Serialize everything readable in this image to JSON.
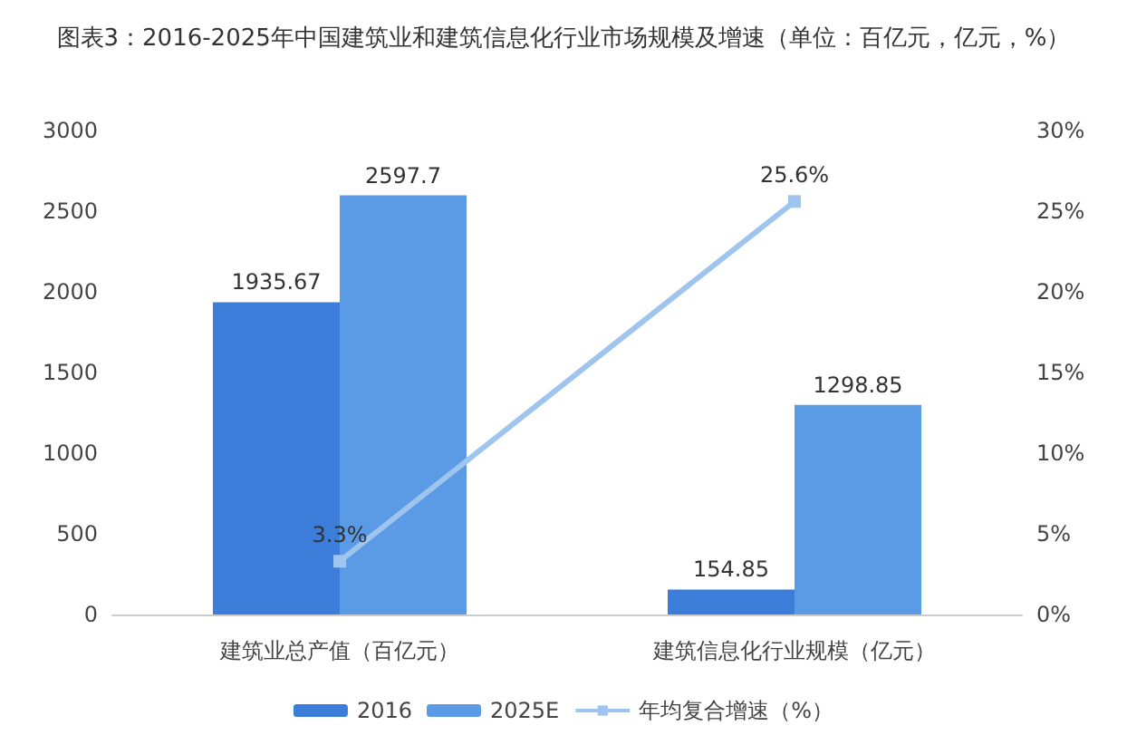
{
  "chart_data": {
    "type": "bar",
    "title": "图表3：2016-2025年中国建筑业和建筑信息化行业市场规模及增速（单位：百亿元，亿元，%）",
    "categories": [
      "建筑业总产值（百亿元）",
      "建筑信息化行业规模（亿元）"
    ],
    "series": [
      {
        "name": "2016",
        "color": "#3b7dd8",
        "values": [
          1935.67,
          154.85
        ],
        "value_labels": [
          "1935.67",
          "154.85"
        ]
      },
      {
        "name": "2025E",
        "color": "#5b9be6",
        "values": [
          2597.7,
          1298.85
        ],
        "value_labels": [
          "2597.7",
          "1298.85"
        ]
      },
      {
        "name": "年均复合增速（%）",
        "type": "line",
        "axis": "y2",
        "color": "#9fc5ef",
        "values": [
          3.3,
          25.6
        ],
        "value_labels": [
          "3.3%",
          "25.6%"
        ],
        "marker": "square"
      }
    ],
    "ylim": [
      0,
      3000
    ],
    "yticks": [
      0,
      500,
      1000,
      1500,
      2000,
      2500,
      3000
    ],
    "y2lim": [
      0,
      30
    ],
    "y2ticks": [
      {
        "value": 0,
        "label": "0%"
      },
      {
        "value": 5,
        "label": "5%"
      },
      {
        "value": 10,
        "label": "10%"
      },
      {
        "value": 15,
        "label": "15%"
      },
      {
        "value": 20,
        "label": "20%"
      },
      {
        "value": 25,
        "label": "25%"
      },
      {
        "value": 30,
        "label": "30%"
      }
    ],
    "legend": "bottom"
  }
}
